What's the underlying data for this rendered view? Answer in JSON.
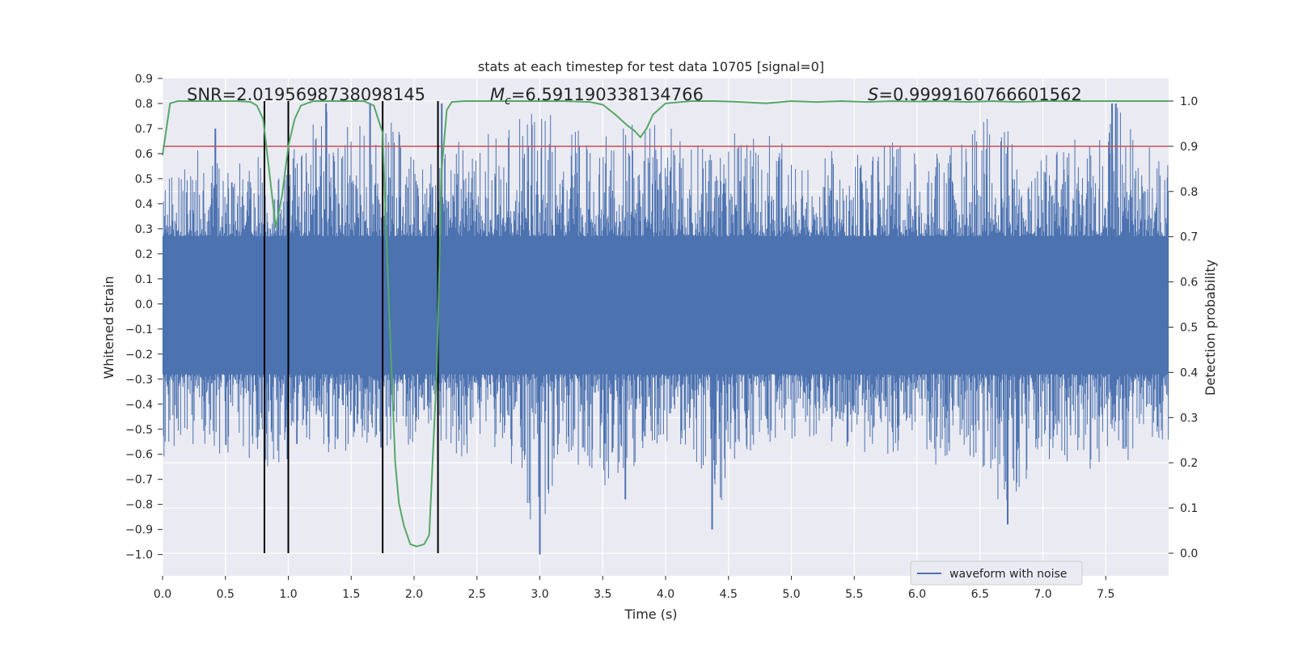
{
  "chart_data": {
    "type": "line",
    "title": "stats at each timestep for test data 10705 [signal=0]",
    "xlabel": "Time (s)",
    "ylabel_left": "Whitened strain",
    "ylabel_right": "Detection probability",
    "xlim": [
      0,
      8
    ],
    "ylim_left": [
      -1.085,
      0.9
    ],
    "ylim_right": [
      -0.05,
      1.05
    ],
    "x_ticks": [
      "0.0",
      "0.5",
      "1.0",
      "1.5",
      "2.0",
      "2.5",
      "3.0",
      "3.5",
      "4.0",
      "4.5",
      "5.0",
      "5.5",
      "6.0",
      "6.5",
      "7.0",
      "7.5"
    ],
    "y_ticks_left": [
      "0.9",
      "0.8",
      "0.7",
      "0.6",
      "0.5",
      "0.4",
      "0.3",
      "0.2",
      "0.1",
      "0.0",
      "−0.1",
      "−0.2",
      "−0.3",
      "−0.4",
      "−0.5",
      "−0.6",
      "−0.7",
      "−0.8",
      "−0.9",
      "−1.0"
    ],
    "y_ticks_right": [
      "1.0",
      "0.9",
      "0.8",
      "0.7",
      "0.6",
      "0.5",
      "0.4",
      "0.3",
      "0.2",
      "0.1",
      "0.0"
    ],
    "annotations": {
      "snr": "SNR=2.0195698738098145",
      "mc_symbol": "M",
      "mc_subscript": "c",
      "mc_value": "=6.591190338134766",
      "s_symbol": "S",
      "s_value": "=0.9999160766601562"
    },
    "legend": {
      "entries": [
        "waveform with noise"
      ],
      "position": "lower-right"
    },
    "grid": true,
    "threshold_line": {
      "axis": "right",
      "value": 0.9,
      "color": "#c44e52"
    },
    "vertical_markers": {
      "x": [
        0.81,
        1.0,
        1.75,
        2.19
      ],
      "color": "#000000"
    },
    "series": [
      {
        "name": "waveform with noise",
        "axis": "left",
        "color": "#4c72b0",
        "core_envelope": {
          "max": 0.27,
          "min": -0.28
        },
        "upper_envelope": [
          [
            0.0,
            0.55
          ],
          [
            0.05,
            0.5
          ],
          [
            0.3,
            0.65
          ],
          [
            0.42,
            0.7
          ],
          [
            0.55,
            0.5
          ],
          [
            0.7,
            0.65
          ],
          [
            0.8,
            0.6
          ],
          [
            0.88,
            0.5
          ],
          [
            1.05,
            0.65
          ],
          [
            1.2,
            0.75
          ],
          [
            1.3,
            0.8
          ],
          [
            1.5,
            0.72
          ],
          [
            1.65,
            0.8
          ],
          [
            1.8,
            0.75
          ],
          [
            1.95,
            0.65
          ],
          [
            2.1,
            0.55
          ],
          [
            2.25,
            0.65
          ],
          [
            2.5,
            0.65
          ],
          [
            2.8,
            0.75
          ],
          [
            3.0,
            0.78
          ],
          [
            3.2,
            0.72
          ],
          [
            3.4,
            0.7
          ],
          [
            3.6,
            0.68
          ],
          [
            3.8,
            0.78
          ],
          [
            4.0,
            0.72
          ],
          [
            4.2,
            0.68
          ],
          [
            4.4,
            0.65
          ],
          [
            4.6,
            0.7
          ],
          [
            4.8,
            0.72
          ],
          [
            5.0,
            0.6
          ],
          [
            5.2,
            0.58
          ],
          [
            5.4,
            0.65
          ],
          [
            5.6,
            0.6
          ],
          [
            5.8,
            0.72
          ],
          [
            6.0,
            0.6
          ],
          [
            6.2,
            0.62
          ],
          [
            6.4,
            0.72
          ],
          [
            6.5,
            0.75
          ],
          [
            6.7,
            0.72
          ],
          [
            6.9,
            0.62
          ],
          [
            7.1,
            0.68
          ],
          [
            7.3,
            0.65
          ],
          [
            7.5,
            0.72
          ],
          [
            7.6,
            0.8
          ],
          [
            7.8,
            0.65
          ],
          [
            8.0,
            0.55
          ]
        ],
        "lower_envelope": [
          [
            0.0,
            -0.65
          ],
          [
            0.2,
            -0.55
          ],
          [
            0.4,
            -0.6
          ],
          [
            0.6,
            -0.6
          ],
          [
            0.8,
            -0.65
          ],
          [
            0.92,
            -0.75
          ],
          [
            1.0,
            -0.72
          ],
          [
            1.2,
            -0.55
          ],
          [
            1.4,
            -0.62
          ],
          [
            1.6,
            -0.55
          ],
          [
            1.8,
            -0.6
          ],
          [
            2.0,
            -0.55
          ],
          [
            2.2,
            -0.55
          ],
          [
            2.4,
            -0.62
          ],
          [
            2.6,
            -0.58
          ],
          [
            2.8,
            -0.65
          ],
          [
            3.0,
            -1.0
          ],
          [
            3.2,
            -0.6
          ],
          [
            3.4,
            -0.72
          ],
          [
            3.6,
            -0.8
          ],
          [
            3.8,
            -0.6
          ],
          [
            4.0,
            -0.58
          ],
          [
            4.2,
            -0.62
          ],
          [
            4.37,
            -0.9
          ],
          [
            4.6,
            -0.6
          ],
          [
            4.8,
            -0.58
          ],
          [
            5.0,
            -0.55
          ],
          [
            5.2,
            -0.62
          ],
          [
            5.4,
            -0.58
          ],
          [
            5.6,
            -0.6
          ],
          [
            5.8,
            -0.6
          ],
          [
            6.0,
            -0.55
          ],
          [
            6.1,
            -0.78
          ],
          [
            6.3,
            -0.6
          ],
          [
            6.5,
            -0.65
          ],
          [
            6.72,
            -0.88
          ],
          [
            6.9,
            -0.7
          ],
          [
            7.1,
            -0.62
          ],
          [
            7.3,
            -0.72
          ],
          [
            7.5,
            -0.65
          ],
          [
            7.7,
            -0.62
          ],
          [
            7.9,
            -0.62
          ],
          [
            8.0,
            -0.55
          ]
        ],
        "spikes": [
          [
            0.42,
            0.7
          ],
          [
            1.3,
            0.8
          ],
          [
            1.65,
            0.8
          ],
          [
            2.22,
            0.8
          ],
          [
            3.0,
            -1.0
          ],
          [
            3.68,
            -0.78
          ],
          [
            4.37,
            -0.9
          ],
          [
            6.72,
            -0.88
          ],
          [
            7.55,
            0.8
          ],
          [
            7.58,
            0.8
          ]
        ]
      },
      {
        "name": "Detection probability",
        "axis": "right",
        "color": "#55a868",
        "x": [
          0.0,
          0.06,
          0.12,
          0.2,
          0.3,
          0.4,
          0.5,
          0.6,
          0.7,
          0.75,
          0.8,
          0.85,
          0.9,
          0.95,
          1.0,
          1.05,
          1.1,
          1.2,
          1.3,
          1.4,
          1.5,
          1.6,
          1.68,
          1.75,
          1.8,
          1.85,
          1.88,
          1.92,
          1.97,
          2.02,
          2.08,
          2.12,
          2.18,
          2.22,
          2.26,
          2.3,
          2.4,
          2.6,
          2.8,
          3.0,
          3.2,
          3.4,
          3.5,
          3.6,
          3.7,
          3.75,
          3.8,
          3.85,
          3.9,
          4.0,
          4.2,
          4.4,
          4.6,
          4.8,
          5.0,
          5.2,
          5.4,
          5.6,
          5.8,
          6.0,
          6.2,
          6.4,
          6.6,
          6.8,
          7.0,
          7.2,
          7.4,
          7.6,
          7.8,
          8.0
        ],
        "y": [
          0.88,
          0.995,
          1.0,
          1.0,
          1.0,
          1.0,
          1.0,
          1.0,
          0.998,
          0.99,
          0.96,
          0.84,
          0.72,
          0.79,
          0.9,
          0.96,
          0.99,
          1.0,
          1.0,
          1.0,
          1.0,
          1.0,
          0.99,
          0.93,
          0.55,
          0.2,
          0.11,
          0.06,
          0.02,
          0.015,
          0.02,
          0.04,
          0.4,
          0.85,
          0.98,
          0.998,
          1.0,
          1.0,
          1.0,
          1.0,
          1.0,
          0.998,
          0.992,
          0.97,
          0.945,
          0.935,
          0.92,
          0.94,
          0.97,
          0.995,
          1.0,
          1.0,
          0.998,
          0.995,
          1.0,
          0.998,
          1.0,
          0.998,
          1.0,
          0.999,
          1.0,
          0.998,
          1.0,
          0.998,
          1.0,
          1.0,
          1.0,
          1.0,
          1.0,
          1.0
        ]
      }
    ]
  }
}
